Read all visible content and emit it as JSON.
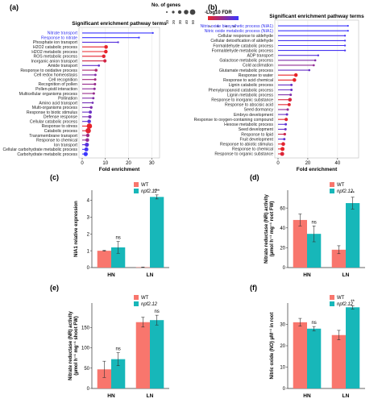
{
  "legend_header": {
    "size_title": "No. of genes",
    "size_labels": [
      "10",
      "20",
      "30",
      "40",
      "50"
    ],
    "color_title": "-Log10 FDR",
    "color_labels": [
      "2",
      "3",
      "4",
      "5"
    ],
    "color_low": "#e8242a",
    "color_high": "#3b36ff"
  },
  "colors": {
    "wt": "#f8766d",
    "npf": "#17b7b9"
  },
  "chart_data": [
    {
      "panel": "(a)",
      "type": "lollipop",
      "title": "Significant enrichment pathway terms",
      "xlabel": "Fold enrichment",
      "xticks": [
        0,
        10,
        20,
        30
      ],
      "xlim": [
        0,
        32
      ],
      "highlight_count": 2,
      "categories": [
        "Nitrate transport",
        "Response to nitrate",
        "Phosphate ion transport",
        "H2O2 catabolic process",
        "H2O2 metabolic process",
        "ROS metabolic process",
        "Inorganic anion transport",
        "Amide transport",
        "Response to oxidative process",
        "Cell redox homeostasis",
        "Cell recognition",
        "Recognition of pollen",
        "Pollen-pistil interaction",
        "Multicellular organisms process",
        "Pollination",
        "Amino acid transport",
        "Multi-organisms process",
        "Response to biotic stimulus",
        "Defense response",
        "Cellular catabolic process",
        "Response to stress",
        "Catabolic process",
        "Transmembrane transport",
        "Response to chemical",
        "Ion transport",
        "Cellular carbohydrate metabolic process",
        "Carbohydrate metabolic process"
      ],
      "values": [
        30.5,
        24.5,
        15.5,
        10.3,
        10.2,
        9.3,
        9.8,
        7.2,
        6.0,
        5.7,
        5.6,
        5.5,
        5.3,
        5.0,
        4.8,
        4.5,
        3.9,
        3.5,
        3.3,
        3.0,
        3.1,
        2.6,
        2.4,
        2.2,
        2.0,
        1.8,
        1.5
      ],
      "neglog10_fdr": [
        5,
        5,
        4.5,
        2,
        2,
        2.1,
        2.4,
        4.3,
        3,
        3.8,
        3.2,
        3.4,
        3.6,
        3.4,
        3.8,
        4,
        3.8,
        4.2,
        3.9,
        4.4,
        2,
        2.1,
        3.3,
        3.5,
        4.5,
        4.8,
        5
      ],
      "genes": [
        8,
        9,
        9,
        25,
        25,
        24,
        22,
        12,
        18,
        13,
        14,
        14,
        14,
        14,
        13,
        12,
        16,
        20,
        22,
        25,
        40,
        40,
        24,
        25,
        30,
        28,
        30
      ]
    },
    {
      "panel": "(b)",
      "type": "lollipop",
      "title": "Significant enrichment pathway terms",
      "xlabel": "Fold enrichment",
      "xticks": [
        0,
        20,
        40
      ],
      "xlim": [
        0,
        52
      ],
      "highlight_count": 2,
      "categories": [
        "Nitric oxide biosynthetic process (NIA1)",
        "Nitric oxide metabolic process (NIA1)",
        "Cellular response to aldehyde",
        "Cellular detoxification of aldehyde",
        "Formaldehyde catabolic process",
        "Formaldehyde metabolic process",
        "ADP transport",
        "Galactose metabolic process",
        "Cold acclimation",
        "Glutamate metabolic process",
        "Response to water",
        "Response to acid chemical",
        "Lignin catabolic process",
        "Phenylpropanoid catabolic process",
        "Lignin metabolic process",
        "Response to inorganic substance",
        "Response to abscisic acid",
        "Seed dormancy",
        "Embryo development",
        "Response to oxygen-containing compound",
        "Hexose metabolic process",
        "Seed development",
        "Response to lipid",
        "Fruit development",
        "Response to abiotic stimulus",
        "Response to chemical",
        "Response to organic substance"
      ],
      "values": [
        47,
        47,
        45,
        45,
        45,
        45,
        27,
        25,
        24,
        21,
        12,
        11,
        9,
        9,
        8.5,
        8,
        7.5,
        6.5,
        6,
        5.5,
        5.2,
        5,
        4.5,
        4.2,
        3.5,
        3,
        2.8
      ],
      "neglog10_fdr": [
        5,
        5,
        4.8,
        4.8,
        4.8,
        4.8,
        4.5,
        3.8,
        3.5,
        4.2,
        2,
        2,
        4.2,
        4.2,
        3.8,
        2.3,
        2.1,
        3.5,
        4.2,
        2.1,
        4.4,
        4.2,
        2.5,
        4.4,
        2.1,
        2,
        2.2
      ],
      "genes": [
        8,
        8,
        9,
        9,
        9,
        9,
        10,
        11,
        11,
        11,
        25,
        25,
        14,
        14,
        14,
        25,
        20,
        14,
        14,
        22,
        14,
        14,
        16,
        14,
        26,
        28,
        28
      ]
    },
    {
      "panel": "(c)",
      "type": "bar",
      "ylabel": "NIA1 relative expression",
      "categories": [
        "HN",
        "LN"
      ],
      "series": [
        {
          "name": "WT",
          "values": [
            1.0,
            0.02
          ],
          "errors": [
            0.02,
            0.01
          ]
        },
        {
          "name": "npf2.12",
          "values": [
            1.2,
            4.2
          ],
          "errors": [
            0.35,
            0.12
          ]
        }
      ],
      "yticks": [
        0,
        1,
        2,
        3,
        4
      ],
      "ylim": [
        0,
        4.6
      ],
      "annotations": [
        "ns",
        "***"
      ]
    },
    {
      "panel": "(d)",
      "type": "bar",
      "ylabel": "Nitrate reductase (NR) activity (µmol h⁻¹ mg⁻¹ root FW)",
      "categories": [
        "HN",
        "LN"
      ],
      "series": [
        {
          "name": "WT",
          "values": [
            48,
            18
          ],
          "errors": [
            6,
            4
          ]
        },
        {
          "name": "npf2.12",
          "values": [
            34,
            65
          ],
          "errors": [
            8,
            6
          ]
        }
      ],
      "yticks": [
        0,
        20,
        40,
        60
      ],
      "ylim": [
        0,
        78
      ],
      "annotations": [
        "ns",
        "**"
      ]
    },
    {
      "panel": "(e)",
      "type": "bar",
      "ylabel": "Nitrate reductase (NR) activity (µmol h⁻¹ mg⁻¹ shoot FW)",
      "categories": [
        "HN",
        "LN"
      ],
      "series": [
        {
          "name": "WT",
          "values": [
            47,
            163
          ],
          "errors": [
            20,
            12
          ]
        },
        {
          "name": "npf2.12",
          "values": [
            72,
            168
          ],
          "errors": [
            16,
            12
          ]
        }
      ],
      "yticks": [
        0,
        50,
        100,
        150
      ],
      "ylim": [
        0,
        210
      ],
      "annotations": [
        "ns",
        "ns"
      ]
    },
    {
      "panel": "(f)",
      "type": "bar",
      "ylabel": "Nitric oxide (NO) µM⁻¹ in root",
      "categories": [
        "HN",
        "LN"
      ],
      "series": [
        {
          "name": "WT",
          "values": [
            31,
            25
          ],
          "errors": [
            1.8,
            2.2
          ]
        },
        {
          "name": "npf2.12",
          "values": [
            28,
            38
          ],
          "errors": [
            1,
            0.8
          ]
        }
      ],
      "yticks": [
        0,
        10,
        20,
        30
      ],
      "ylim": [
        0,
        40
      ],
      "annotations": [
        "ns",
        "**"
      ]
    }
  ]
}
